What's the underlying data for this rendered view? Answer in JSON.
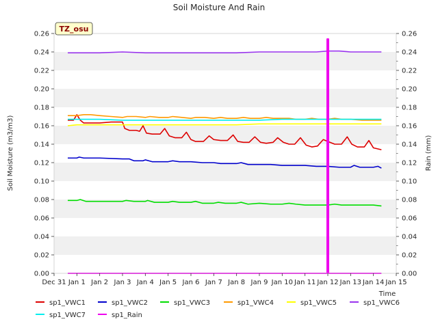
{
  "chart_data": {
    "type": "line",
    "title": "Soil Moisture And Rain",
    "site_label": "TZ_osu",
    "xlabel": "Time",
    "ylabel": "Soil Moisture (m3/m3)",
    "y2label": "Rain (mm)",
    "x_tick_labels": [
      "Dec 31",
      "Jan 1",
      "Jan 2",
      "Jan 3",
      "Jan 4",
      "Jan 5",
      "Jan 6",
      "Jan 7",
      "Jan 8",
      "Jan 9",
      "Jan 10",
      "Jan 11",
      "Jan 12",
      "Jan 13",
      "Jan 14",
      "Jan 15"
    ],
    "y_ticks": [
      0.0,
      0.02,
      0.04,
      0.06,
      0.08,
      0.1,
      0.12,
      0.14,
      0.16,
      0.18,
      0.2,
      0.22,
      0.24,
      0.26
    ],
    "y2_ticks": [
      0.0,
      0.02,
      0.04,
      0.06,
      0.08,
      0.1,
      0.12,
      0.14,
      0.16,
      0.18,
      0.2,
      0.22,
      0.24,
      0.26
    ],
    "xlim_days": [
      0,
      15
    ],
    "ylim": [
      0,
      0.26
    ],
    "y2lim": [
      0,
      0.26
    ],
    "grid_bands": true,
    "legend_position": "bottom",
    "series": [
      {
        "name": "sp1_VWC1",
        "color": "#dd0000",
        "axis": "left",
        "points": [
          [
            0.6,
            0.166
          ],
          [
            0.85,
            0.166
          ],
          [
            1.0,
            0.172
          ],
          [
            1.15,
            0.166
          ],
          [
            1.3,
            0.163
          ],
          [
            1.6,
            0.163
          ],
          [
            2.0,
            0.163
          ],
          [
            2.5,
            0.164
          ],
          [
            3.0,
            0.164
          ],
          [
            3.1,
            0.157
          ],
          [
            3.3,
            0.155
          ],
          [
            3.6,
            0.155
          ],
          [
            3.75,
            0.154
          ],
          [
            3.9,
            0.16
          ],
          [
            4.05,
            0.152
          ],
          [
            4.3,
            0.151
          ],
          [
            4.65,
            0.151
          ],
          [
            4.85,
            0.157
          ],
          [
            5.05,
            0.149
          ],
          [
            5.3,
            0.147
          ],
          [
            5.6,
            0.147
          ],
          [
            5.8,
            0.153
          ],
          [
            6.0,
            0.145
          ],
          [
            6.2,
            0.143
          ],
          [
            6.55,
            0.143
          ],
          [
            6.8,
            0.149
          ],
          [
            7.0,
            0.145
          ],
          [
            7.3,
            0.144
          ],
          [
            7.6,
            0.144
          ],
          [
            7.85,
            0.15
          ],
          [
            8.05,
            0.143
          ],
          [
            8.3,
            0.142
          ],
          [
            8.55,
            0.142
          ],
          [
            8.8,
            0.148
          ],
          [
            9.05,
            0.142
          ],
          [
            9.3,
            0.141
          ],
          [
            9.6,
            0.142
          ],
          [
            9.8,
            0.147
          ],
          [
            10.05,
            0.142
          ],
          [
            10.3,
            0.14
          ],
          [
            10.55,
            0.14
          ],
          [
            10.8,
            0.147
          ],
          [
            11.05,
            0.139
          ],
          [
            11.3,
            0.137
          ],
          [
            11.55,
            0.138
          ],
          [
            11.8,
            0.145
          ],
          [
            12.0,
            0.143
          ],
          [
            12.3,
            0.14
          ],
          [
            12.6,
            0.14
          ],
          [
            12.85,
            0.148
          ],
          [
            13.05,
            0.14
          ],
          [
            13.3,
            0.137
          ],
          [
            13.6,
            0.137
          ],
          [
            13.8,
            0.144
          ],
          [
            14.0,
            0.136
          ],
          [
            14.35,
            0.134
          ]
        ]
      },
      {
        "name": "sp1_VWC2",
        "color": "#0000cc",
        "axis": "left",
        "points": [
          [
            0.6,
            0.125
          ],
          [
            1.0,
            0.125
          ],
          [
            1.1,
            0.126
          ],
          [
            1.3,
            0.125
          ],
          [
            2.0,
            0.125
          ],
          [
            3.0,
            0.124
          ],
          [
            3.3,
            0.124
          ],
          [
            3.5,
            0.122
          ],
          [
            3.9,
            0.122
          ],
          [
            4.0,
            0.123
          ],
          [
            4.3,
            0.121
          ],
          [
            5.0,
            0.121
          ],
          [
            5.2,
            0.122
          ],
          [
            5.5,
            0.121
          ],
          [
            6.0,
            0.121
          ],
          [
            6.5,
            0.12
          ],
          [
            7.0,
            0.12
          ],
          [
            7.3,
            0.119
          ],
          [
            8.0,
            0.119
          ],
          [
            8.2,
            0.12
          ],
          [
            8.5,
            0.118
          ],
          [
            9.0,
            0.118
          ],
          [
            9.5,
            0.118
          ],
          [
            10.0,
            0.117
          ],
          [
            10.5,
            0.117
          ],
          [
            11.0,
            0.117
          ],
          [
            11.5,
            0.116
          ],
          [
            12.0,
            0.116
          ],
          [
            12.5,
            0.115
          ],
          [
            13.0,
            0.115
          ],
          [
            13.15,
            0.117
          ],
          [
            13.4,
            0.115
          ],
          [
            14.0,
            0.115
          ],
          [
            14.2,
            0.116
          ],
          [
            14.35,
            0.114
          ]
        ]
      },
      {
        "name": "sp1_VWC3",
        "color": "#00dd00",
        "axis": "left",
        "points": [
          [
            0.6,
            0.079
          ],
          [
            1.0,
            0.079
          ],
          [
            1.15,
            0.08
          ],
          [
            1.4,
            0.078
          ],
          [
            2.0,
            0.078
          ],
          [
            3.0,
            0.078
          ],
          [
            3.15,
            0.079
          ],
          [
            3.5,
            0.078
          ],
          [
            4.0,
            0.078
          ],
          [
            4.1,
            0.079
          ],
          [
            4.4,
            0.077
          ],
          [
            5.0,
            0.077
          ],
          [
            5.2,
            0.078
          ],
          [
            5.5,
            0.077
          ],
          [
            6.0,
            0.077
          ],
          [
            6.2,
            0.078
          ],
          [
            6.5,
            0.076
          ],
          [
            7.0,
            0.076
          ],
          [
            7.2,
            0.077
          ],
          [
            7.5,
            0.076
          ],
          [
            8.0,
            0.076
          ],
          [
            8.2,
            0.077
          ],
          [
            8.5,
            0.075
          ],
          [
            9.0,
            0.076
          ],
          [
            9.5,
            0.075
          ],
          [
            10.0,
            0.075
          ],
          [
            10.3,
            0.076
          ],
          [
            10.6,
            0.075
          ],
          [
            11.0,
            0.074
          ],
          [
            11.5,
            0.074
          ],
          [
            12.0,
            0.074
          ],
          [
            12.3,
            0.075
          ],
          [
            12.6,
            0.074
          ],
          [
            13.0,
            0.074
          ],
          [
            13.5,
            0.074
          ],
          [
            14.0,
            0.074
          ],
          [
            14.35,
            0.073
          ]
        ]
      },
      {
        "name": "sp1_VWC4",
        "color": "#ff9900",
        "axis": "left",
        "points": [
          [
            0.6,
            0.171
          ],
          [
            1.0,
            0.171
          ],
          [
            1.3,
            0.172
          ],
          [
            1.6,
            0.172
          ],
          [
            2.0,
            0.171
          ],
          [
            2.5,
            0.17
          ],
          [
            3.0,
            0.169
          ],
          [
            3.2,
            0.17
          ],
          [
            3.6,
            0.17
          ],
          [
            4.0,
            0.169
          ],
          [
            4.2,
            0.17
          ],
          [
            4.6,
            0.169
          ],
          [
            5.0,
            0.169
          ],
          [
            5.2,
            0.17
          ],
          [
            5.6,
            0.169
          ],
          [
            6.0,
            0.168
          ],
          [
            6.2,
            0.169
          ],
          [
            6.6,
            0.169
          ],
          [
            7.0,
            0.168
          ],
          [
            7.3,
            0.169
          ],
          [
            7.6,
            0.168
          ],
          [
            8.0,
            0.168
          ],
          [
            8.3,
            0.169
          ],
          [
            8.6,
            0.168
          ],
          [
            9.0,
            0.168
          ],
          [
            9.3,
            0.169
          ],
          [
            9.6,
            0.168
          ],
          [
            10.0,
            0.168
          ],
          [
            10.3,
            0.168
          ],
          [
            10.6,
            0.167
          ],
          [
            11.0,
            0.167
          ],
          [
            11.3,
            0.168
          ],
          [
            11.6,
            0.167
          ],
          [
            12.0,
            0.167
          ],
          [
            12.3,
            0.168
          ],
          [
            12.6,
            0.167
          ],
          [
            13.0,
            0.167
          ],
          [
            13.5,
            0.166
          ],
          [
            14.0,
            0.166
          ],
          [
            14.35,
            0.166
          ]
        ]
      },
      {
        "name": "sp1_VWC5",
        "color": "#ffff00",
        "axis": "left",
        "points": [
          [
            0.6,
            0.16
          ],
          [
            1.0,
            0.161
          ],
          [
            2.0,
            0.161
          ],
          [
            3.0,
            0.161
          ],
          [
            4.0,
            0.161
          ],
          [
            5.0,
            0.161
          ],
          [
            6.0,
            0.161
          ],
          [
            7.0,
            0.161
          ],
          [
            8.0,
            0.161
          ],
          [
            9.0,
            0.162
          ],
          [
            10.0,
            0.162
          ],
          [
            11.0,
            0.162
          ],
          [
            12.0,
            0.162
          ],
          [
            13.0,
            0.162
          ],
          [
            14.0,
            0.162
          ],
          [
            14.35,
            0.162
          ]
        ]
      },
      {
        "name": "sp1_VWC6",
        "color": "#9933ee",
        "axis": "left",
        "points": [
          [
            0.6,
            0.239
          ],
          [
            1.0,
            0.239
          ],
          [
            2.0,
            0.239
          ],
          [
            3.0,
            0.24
          ],
          [
            4.0,
            0.239
          ],
          [
            5.0,
            0.239
          ],
          [
            6.0,
            0.239
          ],
          [
            7.0,
            0.239
          ],
          [
            8.0,
            0.239
          ],
          [
            9.0,
            0.24
          ],
          [
            10.0,
            0.24
          ],
          [
            11.0,
            0.24
          ],
          [
            11.5,
            0.24
          ],
          [
            12.0,
            0.241
          ],
          [
            12.5,
            0.241
          ],
          [
            13.0,
            0.24
          ],
          [
            14.0,
            0.24
          ],
          [
            14.35,
            0.24
          ]
        ]
      },
      {
        "name": "sp1_VWC7",
        "color": "#00eeee",
        "axis": "left",
        "points": [
          [
            0.6,
            0.167
          ],
          [
            1.0,
            0.167
          ],
          [
            2.0,
            0.167
          ],
          [
            3.0,
            0.166
          ],
          [
            4.0,
            0.166
          ],
          [
            5.0,
            0.166
          ],
          [
            6.0,
            0.166
          ],
          [
            7.0,
            0.166
          ],
          [
            8.0,
            0.166
          ],
          [
            9.0,
            0.166
          ],
          [
            10.0,
            0.167
          ],
          [
            11.0,
            0.167
          ],
          [
            12.0,
            0.167
          ],
          [
            13.0,
            0.167
          ],
          [
            14.0,
            0.167
          ],
          [
            14.35,
            0.167
          ]
        ]
      },
      {
        "name": "sp1_Rain",
        "color": "#ee00ee",
        "axis": "right",
        "points": [
          [
            0.6,
            0.0
          ],
          [
            11.97,
            0.0
          ],
          [
            11.97,
            0.254
          ],
          [
            12.03,
            0.254
          ],
          [
            12.03,
            0.0
          ],
          [
            14.35,
            0.0
          ]
        ]
      }
    ]
  }
}
